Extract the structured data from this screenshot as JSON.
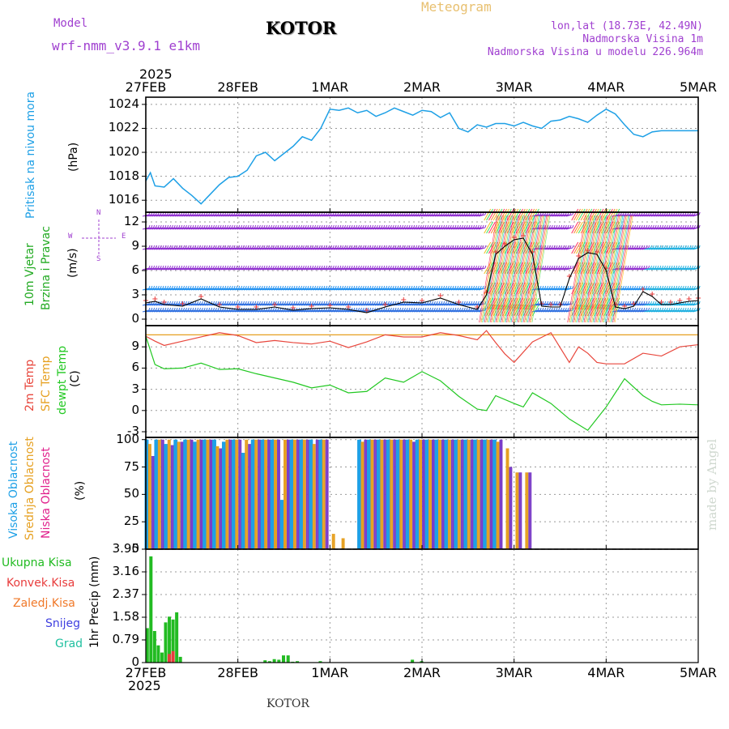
{
  "header": {
    "model_label": "Model",
    "model_name": "wrf-nmm_v3.9.1 e1km",
    "station": "KOTOR",
    "meteogram": "Meteogram",
    "lonlat": "lon,lat (18.73E, 42.49N)",
    "elevation": "Nadmorska Visina 1m",
    "model_elevation": "Nadmorska Visina u modelu 226.964m",
    "footer_station": "KOTOR",
    "watermark": "made by Angel"
  },
  "time_axis": {
    "year": "2025",
    "labels": [
      "27FEB",
      "28FEB",
      "1MAR",
      "2MAR",
      "3MAR",
      "4MAR",
      "5MAR"
    ]
  },
  "colors": {
    "pressure": "#1ea0e6",
    "wind_label": "#22aa22",
    "temp2m": "#e8463c",
    "sfc": "#e6a020",
    "dewpt": "#22c822",
    "cloud_high": "#1ea0e6",
    "cloud_mid": "#e6a020",
    "cloud_low": "#7a3cc8",
    "precip_total": "#22bb22",
    "konvek": "#e83c3c",
    "zaledj": "#f07828",
    "snijeg": "#4040e0",
    "grad": "#20c0a0",
    "purple_text": "#a040d0"
  },
  "chart_data": [
    {
      "type": "line",
      "panel": "pressure",
      "ylabel_lines": [
        "Pritisak na nivou mora",
        "(hPa)"
      ],
      "yticks": [
        1016,
        1018,
        1020,
        1022,
        1024
      ],
      "ylim": [
        1015,
        1024.6
      ],
      "x_range_days": [
        0,
        6
      ],
      "series": [
        {
          "x": [
            0,
            0.05,
            0.1,
            0.2,
            0.3,
            0.4,
            0.5,
            0.6,
            0.7,
            0.8,
            0.9,
            1.0,
            1.1,
            1.2,
            1.3,
            1.4,
            1.5,
            1.6,
            1.7,
            1.8,
            1.9,
            2.0,
            2.1,
            2.2,
            2.3,
            2.4,
            2.5,
            2.6,
            2.7,
            2.8,
            2.9,
            3.0,
            3.1,
            3.2,
            3.3,
            3.4,
            3.5,
            3.6,
            3.7,
            3.8,
            3.9,
            4.0,
            4.1,
            4.2,
            4.3,
            4.4,
            4.5,
            4.6,
            4.7,
            4.8,
            4.9,
            5.0,
            5.1,
            5.2,
            5.3,
            5.4,
            5.5,
            5.6,
            5.7,
            5.8,
            5.9,
            6.0
          ],
          "values": [
            1017.6,
            1018.3,
            1017.2,
            1017.1,
            1017.8,
            1017.0,
            1016.4,
            1015.7,
            1016.5,
            1017.3,
            1017.9,
            1018.0,
            1018.5,
            1019.7,
            1020.0,
            1019.3,
            1019.9,
            1020.5,
            1021.3,
            1021.0,
            1022.0,
            1023.6,
            1023.5,
            1023.7,
            1023.3,
            1023.5,
            1023.0,
            1023.3,
            1023.7,
            1023.4,
            1023.1,
            1023.5,
            1023.4,
            1022.9,
            1023.3,
            1022.0,
            1021.7,
            1022.3,
            1022.1,
            1022.4,
            1022.4,
            1022.2,
            1022.5,
            1022.2,
            1022.0,
            1022.6,
            1022.7,
            1023.0,
            1022.8,
            1022.5,
            1023.1,
            1023.6,
            1023.2,
            1022.3,
            1021.5,
            1021.3,
            1021.7,
            1021.8,
            1021.8,
            1021.8,
            1021.8,
            1021.8
          ]
        }
      ]
    },
    {
      "type": "line",
      "panel": "wind",
      "ylabel_lines": [
        "10m Vjetar",
        "Brzina i Pravac",
        "(m/s)"
      ],
      "compass": [
        "N",
        "E",
        "S",
        "W"
      ],
      "yticks": [
        0,
        3,
        6,
        9,
        12
      ],
      "ylim": [
        -0.8,
        13.2
      ],
      "barb_levels": [
        1,
        1.8,
        3.7,
        6.2,
        8.7,
        11.2,
        12.8
      ],
      "series": [
        {
          "name": "speed",
          "x": [
            0,
            0.1,
            0.2,
            0.4,
            0.6,
            0.8,
            1.0,
            1.2,
            1.4,
            1.6,
            1.8,
            2.0,
            2.2,
            2.4,
            2.6,
            2.8,
            3.0,
            3.2,
            3.4,
            3.6,
            3.7,
            3.8,
            3.9,
            4.0,
            4.1,
            4.2,
            4.3,
            4.4,
            4.5,
            4.6,
            4.7,
            4.8,
            4.9,
            5.0,
            5.1,
            5.2,
            5.3,
            5.4,
            5.5,
            5.6,
            5.7,
            5.8,
            5.9,
            6.0
          ],
          "values": [
            2,
            2.2,
            1.8,
            1.6,
            2.5,
            1.5,
            1.2,
            1.2,
            1.5,
            1.1,
            1.3,
            1.4,
            1.2,
            0.8,
            1.5,
            2.1,
            2.0,
            2.6,
            1.8,
            1.2,
            3.0,
            8.0,
            9.0,
            9.8,
            10.0,
            8.0,
            1.6,
            1.5,
            1.5,
            5.0,
            7.5,
            8.2,
            8.0,
            6.0,
            1.5,
            1.3,
            1.6,
            3.4,
            2.8,
            1.8,
            1.8,
            2.0,
            2.2,
            2.3
          ]
        }
      ]
    },
    {
      "type": "line",
      "panel": "temperature",
      "ylabel_lines": [
        "2m Temp",
        "SFC Temp",
        "dewpt Temp",
        "(C)"
      ],
      "yticks": [
        -3,
        0,
        3,
        6,
        9
      ],
      "ylim": [
        -3.8,
        12.0
      ],
      "series": [
        {
          "name": "2m Temp",
          "x": [
            0,
            0.1,
            0.2,
            0.4,
            0.6,
            0.8,
            1.0,
            1.2,
            1.4,
            1.6,
            1.8,
            2.0,
            2.2,
            2.4,
            2.6,
            2.8,
            3.0,
            3.2,
            3.4,
            3.6,
            3.7,
            3.8,
            3.9,
            4.0,
            4.2,
            4.4,
            4.6,
            4.7,
            4.8,
            4.9,
            5.0,
            5.2,
            5.4,
            5.6,
            5.8,
            6.0
          ],
          "values": [
            10.5,
            9.8,
            9.2,
            9.8,
            10.4,
            11.0,
            10.6,
            9.6,
            9.9,
            9.6,
            9.4,
            9.8,
            8.9,
            9.7,
            10.7,
            10.4,
            10.4,
            11.0,
            10.6,
            10.0,
            11.3,
            9.6,
            8.0,
            6.8,
            9.7,
            11.0,
            6.8,
            9.0,
            8.1,
            6.8,
            6.6,
            6.6,
            8.1,
            7.7,
            9.0,
            9.3
          ]
        },
        {
          "name": "SFC Temp",
          "x": [
            0,
            6
          ],
          "values": [
            10.7,
            10.7
          ]
        },
        {
          "name": "dewpt Temp",
          "x": [
            0,
            0.1,
            0.2,
            0.4,
            0.6,
            0.8,
            1.0,
            1.2,
            1.4,
            1.6,
            1.8,
            2.0,
            2.2,
            2.4,
            2.6,
            2.8,
            3.0,
            3.2,
            3.4,
            3.6,
            3.7,
            3.8,
            4.0,
            4.1,
            4.2,
            4.4,
            4.6,
            4.8,
            5.0,
            5.2,
            5.4,
            5.5,
            5.6,
            5.8,
            6.0
          ],
          "values": [
            10.5,
            6.5,
            5.9,
            6.0,
            6.7,
            5.8,
            5.9,
            5.2,
            4.6,
            4.0,
            3.2,
            3.6,
            2.5,
            2.7,
            4.6,
            4.0,
            5.5,
            4.2,
            2.0,
            0.2,
            0.0,
            2.1,
            1.0,
            0.5,
            2.5,
            1.0,
            -1.2,
            -2.8,
            0.5,
            4.5,
            2.1,
            1.3,
            0.8,
            0.9,
            0.8
          ]
        }
      ]
    },
    {
      "type": "bar",
      "panel": "clouds",
      "ylabel_lines": [
        "Visoka Oblacnost",
        "Srednja Oblacnost",
        "Niska Oblacnost",
        "(%)"
      ],
      "yticks": [
        0,
        25,
        50,
        75,
        100
      ],
      "ylim": [
        0,
        102
      ],
      "bar_region_days": [
        0,
        4.2
      ],
      "series": [
        {
          "name": "Visoka Oblacnost",
          "values": [
            100,
            100,
            96,
            100,
            100,
            98,
            100,
            100,
            98,
            100,
            88,
            100,
            100,
            100,
            45,
            100,
            100,
            100,
            100,
            0,
            0,
            0,
            100,
            100,
            100,
            100,
            100,
            100,
            100,
            100,
            100,
            100,
            100,
            100,
            100,
            100,
            100,
            0,
            0,
            0
          ]
        },
        {
          "name": "Srednja Oblacnost",
          "values": [
            96,
            100,
            100,
            98,
            100,
            100,
            100,
            94,
            100,
            100,
            100,
            100,
            100,
            100,
            100,
            100,
            100,
            96,
            100,
            14,
            10,
            0,
            98,
            100,
            100,
            100,
            100,
            100,
            100,
            100,
            100,
            100,
            100,
            100,
            100,
            100,
            98,
            92,
            70,
            70
          ]
        },
        {
          "name": "Niska Oblacnost",
          "values": [
            85,
            100,
            95,
            98,
            100,
            100,
            100,
            92,
            100,
            100,
            96,
            100,
            100,
            100,
            100,
            100,
            100,
            100,
            100,
            0,
            0,
            0,
            100,
            100,
            100,
            100,
            100,
            98,
            100,
            100,
            100,
            100,
            100,
            100,
            100,
            100,
            100,
            75,
            70,
            70
          ]
        }
      ]
    },
    {
      "type": "bar",
      "panel": "precip",
      "ylabel_lines": [
        "1hr Precip (mm)"
      ],
      "legend": [
        "Ukupna Kisa",
        "Konvek.Kisa",
        "Zaledj.Kisa",
        "Snijeg",
        "Grad"
      ],
      "yticks": [
        0,
        0.79,
        1.58,
        2.37,
        3.16,
        3.95
      ],
      "ylim": [
        0,
        3.95
      ],
      "series": [
        {
          "name": "Ukupna Kisa",
          "x": [
            0.02,
            0.06,
            0.1,
            0.14,
            0.18,
            0.22,
            0.26,
            0.3,
            0.34,
            0.38,
            1.3,
            1.35,
            1.4,
            1.45,
            1.5,
            1.55,
            1.6,
            1.65,
            1.9,
            2.9,
            3.0
          ],
          "values": [
            1.2,
            3.7,
            1.1,
            0.6,
            0.35,
            1.4,
            1.6,
            1.5,
            1.75,
            0.2,
            0.08,
            0.05,
            0.12,
            0.1,
            0.25,
            0.25,
            0.03,
            0.05,
            0.05,
            0.1,
            0.05
          ]
        },
        {
          "name": "Konvek.Kisa",
          "x": [
            0.26,
            0.3
          ],
          "values": [
            0.3,
            0.4
          ]
        },
        {
          "name": "Snijeg",
          "x": [],
          "values": []
        },
        {
          "name": "Grad",
          "x": [],
          "values": []
        }
      ]
    }
  ]
}
